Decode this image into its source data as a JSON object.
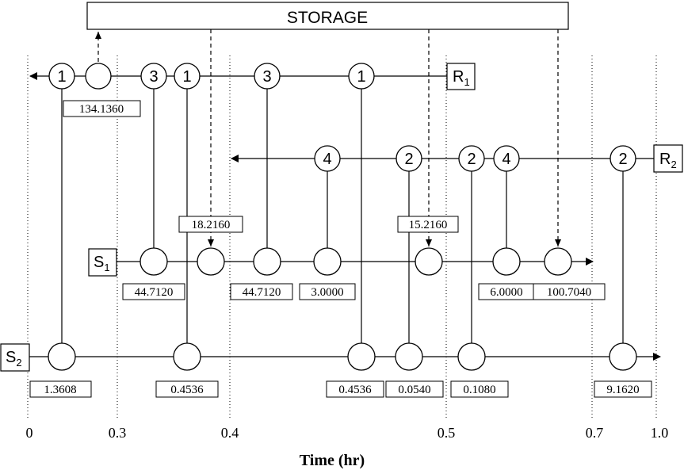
{
  "storage": {
    "label": "STORAGE"
  },
  "streams": {
    "R1": {
      "letter": "R",
      "sub": "1"
    },
    "R2": {
      "letter": "R",
      "sub": "2"
    },
    "S1": {
      "letter": "S",
      "sub": "1"
    },
    "S2": {
      "letter": "S",
      "sub": "2"
    }
  },
  "r1_nodes": [
    "1",
    "",
    "3",
    "1",
    "3",
    "1"
  ],
  "r2_nodes": [
    "4",
    "2",
    "2",
    "4",
    "2"
  ],
  "values": {
    "storage_out_r1": "134.1360",
    "storage_in_s1_a": "18.2160",
    "storage_in_s1_b": "15.2160",
    "s1_1": "44.7120",
    "s1_2": "44.7120",
    "s1_3": "3.0000",
    "s1_4": "6.0000",
    "s1_5": "100.7040",
    "s2_1": "1.3608",
    "s2_2": "0.4536",
    "s2_3": "0.4536",
    "s2_4": "0.0540",
    "s2_5": "0.1080",
    "s2_6": "9.1620"
  },
  "time_axis": {
    "ticks": [
      "0",
      "0.3",
      "0.4",
      "0.5",
      "0.7",
      "1.0"
    ],
    "label": "Time (hr)"
  }
}
